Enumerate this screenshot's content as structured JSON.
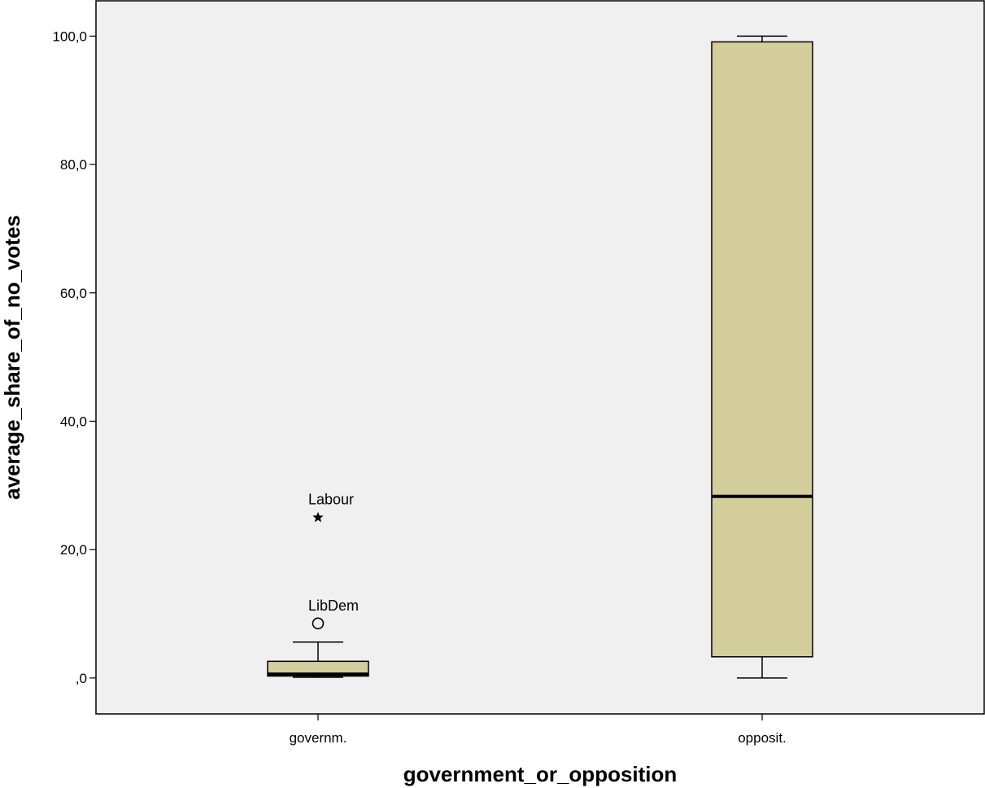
{
  "chart_data": {
    "type": "boxplot",
    "xlabel": "government_or_opposition",
    "ylabel": "average_share_of_no_votes",
    "ylim": [
      -5.6,
      105.5
    ],
    "yticks": [
      {
        "value": 0,
        "label": ",0"
      },
      {
        "value": 20,
        "label": "20,0"
      },
      {
        "value": 40,
        "label": "40,0"
      },
      {
        "value": 60,
        "label": "60,0"
      },
      {
        "value": 80,
        "label": "80,0"
      },
      {
        "value": 100,
        "label": "100,0"
      }
    ],
    "categories": [
      "governm.",
      "opposit."
    ],
    "boxes": [
      {
        "category": "governm.",
        "whisker_low": 0.1,
        "q1": 0.3,
        "median": 0.6,
        "q3": 2.6,
        "whisker_high": 5.6,
        "outliers": [
          {
            "value": 8.5,
            "label": "LibDem",
            "marker": "circle"
          },
          {
            "value": 25.0,
            "label": "Labour",
            "marker": "star"
          }
        ]
      },
      {
        "category": "opposit.",
        "whisker_low": 0.0,
        "q1": 3.3,
        "median": 28.3,
        "q3": 99.1,
        "whisker_high": 100.0,
        "outliers": []
      }
    ],
    "colors": {
      "box_fill": "#d3ce9b",
      "plot_background": "#f0f0f0",
      "stroke": "#000000"
    },
    "grid": false
  }
}
